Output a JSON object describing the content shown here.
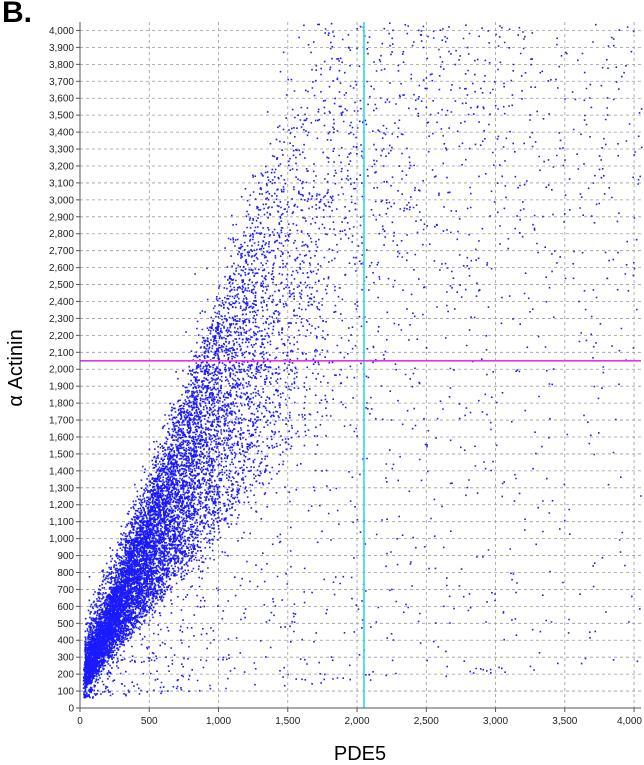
{
  "panel_label": "B.",
  "chart_data": {
    "type": "scatter",
    "title": "",
    "xlabel": "PDE5",
    "ylabel": "α Actinin",
    "xlim": [
      0,
      4050
    ],
    "ylim": [
      0,
      4050
    ],
    "xticks": [
      0,
      500,
      1000,
      1500,
      2000,
      2500,
      3000,
      3500,
      4000
    ],
    "xtick_labels": [
      "0",
      "500",
      "1,000",
      "1,500",
      "2,000",
      "2,500",
      "3,000",
      "3,500",
      "4,000"
    ],
    "yticks": [
      0,
      100,
      200,
      300,
      400,
      500,
      600,
      700,
      800,
      900,
      1000,
      1100,
      1200,
      1300,
      1400,
      1500,
      1600,
      1700,
      1800,
      1900,
      2000,
      2100,
      2200,
      2300,
      2400,
      2500,
      2600,
      2700,
      2800,
      2900,
      3000,
      3100,
      3200,
      3300,
      3400,
      3500,
      3600,
      3700,
      3800,
      3900,
      4000
    ],
    "ytick_labels": [
      "0",
      "100",
      "200",
      "300",
      "400",
      "500",
      "600",
      "700",
      "800",
      "900",
      "1,000",
      "1,100",
      "1,200",
      "1,300",
      "1,400",
      "1,500",
      "1,600",
      "1,700",
      "1,800",
      "1,900",
      "2,000",
      "2,100",
      "2,200",
      "2,300",
      "2,400",
      "2,500",
      "2,600",
      "2,700",
      "2,800",
      "2,900",
      "3,000",
      "3,100",
      "3,200",
      "3,300",
      "3,400",
      "3,500",
      "3,600",
      "3,700",
      "3,800",
      "3,900",
      "4,000"
    ],
    "grid": true,
    "point_color": "#1a1aff",
    "gates": {
      "vertical": {
        "x": 2050,
        "color": "#33d6e6"
      },
      "horizontal": {
        "y": 2050,
        "color": "#e633e6"
      }
    },
    "distribution": {
      "description_points": [
        {
          "x": 100,
          "y": 100
        },
        {
          "x": 500,
          "y": 800
        },
        {
          "x": 1000,
          "y": 1500
        },
        {
          "x": 1500,
          "y": 2200
        },
        {
          "x": 2000,
          "y": 2700
        },
        {
          "x": 3000,
          "y": 3200
        },
        {
          "x": 4000,
          "y": 3800
        }
      ]
    }
  }
}
